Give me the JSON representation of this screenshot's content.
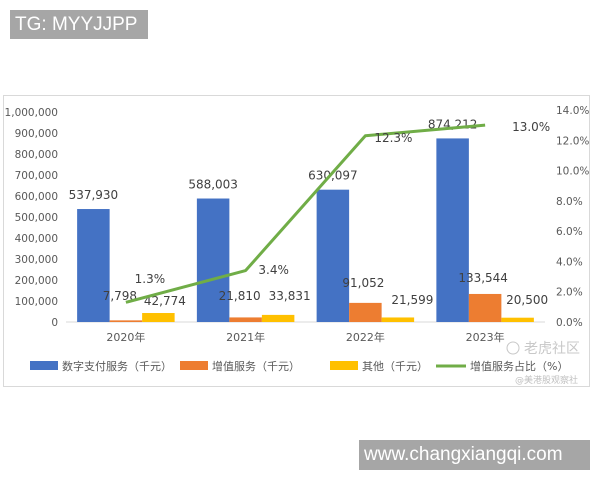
{
  "overlay": {
    "tg_label": "TG: MYYJJPP",
    "site_label": "www.changxiangqi.com"
  },
  "watermark": {
    "logo_text": "老虎社区",
    "author": "@美港股观察社"
  },
  "colors": {
    "digital": "#4472c4",
    "value_added": "#ed7d31",
    "other": "#ffc000",
    "share": "#70ad47"
  },
  "chart_data": {
    "type": "bar",
    "categories": [
      "2020年",
      "2021年",
      "2022年",
      "2023年"
    ],
    "series": [
      {
        "name": "数字支付服务（千元）",
        "kind": "bar",
        "axis": "left",
        "values": [
          537930,
          588003,
          630097,
          874212
        ],
        "labels": [
          "537,930",
          "588,003",
          "630,097",
          "874,212"
        ]
      },
      {
        "name": "增值服务（千元）",
        "kind": "bar",
        "axis": "left",
        "values": [
          7798,
          21810,
          91052,
          133544
        ],
        "labels": [
          "7,798",
          "21,810",
          "91,052",
          "133,544"
        ]
      },
      {
        "name": "其他（千元）",
        "kind": "bar",
        "axis": "left",
        "values": [
          42774,
          33831,
          21599,
          20500
        ],
        "labels": [
          "42,774",
          "33,831",
          "21,599",
          "20,500"
        ]
      },
      {
        "name": "增值服务占比（%）",
        "kind": "line",
        "axis": "right",
        "values": [
          1.3,
          3.4,
          12.3,
          13.0
        ],
        "labels": [
          "1.3%",
          "3.4%",
          "12.3%",
          "13.0%"
        ]
      }
    ],
    "y_left": {
      "range": [
        0,
        1000000
      ],
      "ticks": [
        "0",
        "100,000",
        "200,000",
        "300,000",
        "400,000",
        "500,000",
        "600,000",
        "700,000",
        "800,000",
        "900,000",
        "1,000,000"
      ]
    },
    "y_right": {
      "range": [
        0,
        14
      ],
      "ticks": [
        "0.0%",
        "2.0%",
        "4.0%",
        "6.0%",
        "8.0%",
        "10.0%",
        "12.0%",
        "14.0%"
      ]
    },
    "grid": false,
    "legend": "bottom"
  }
}
